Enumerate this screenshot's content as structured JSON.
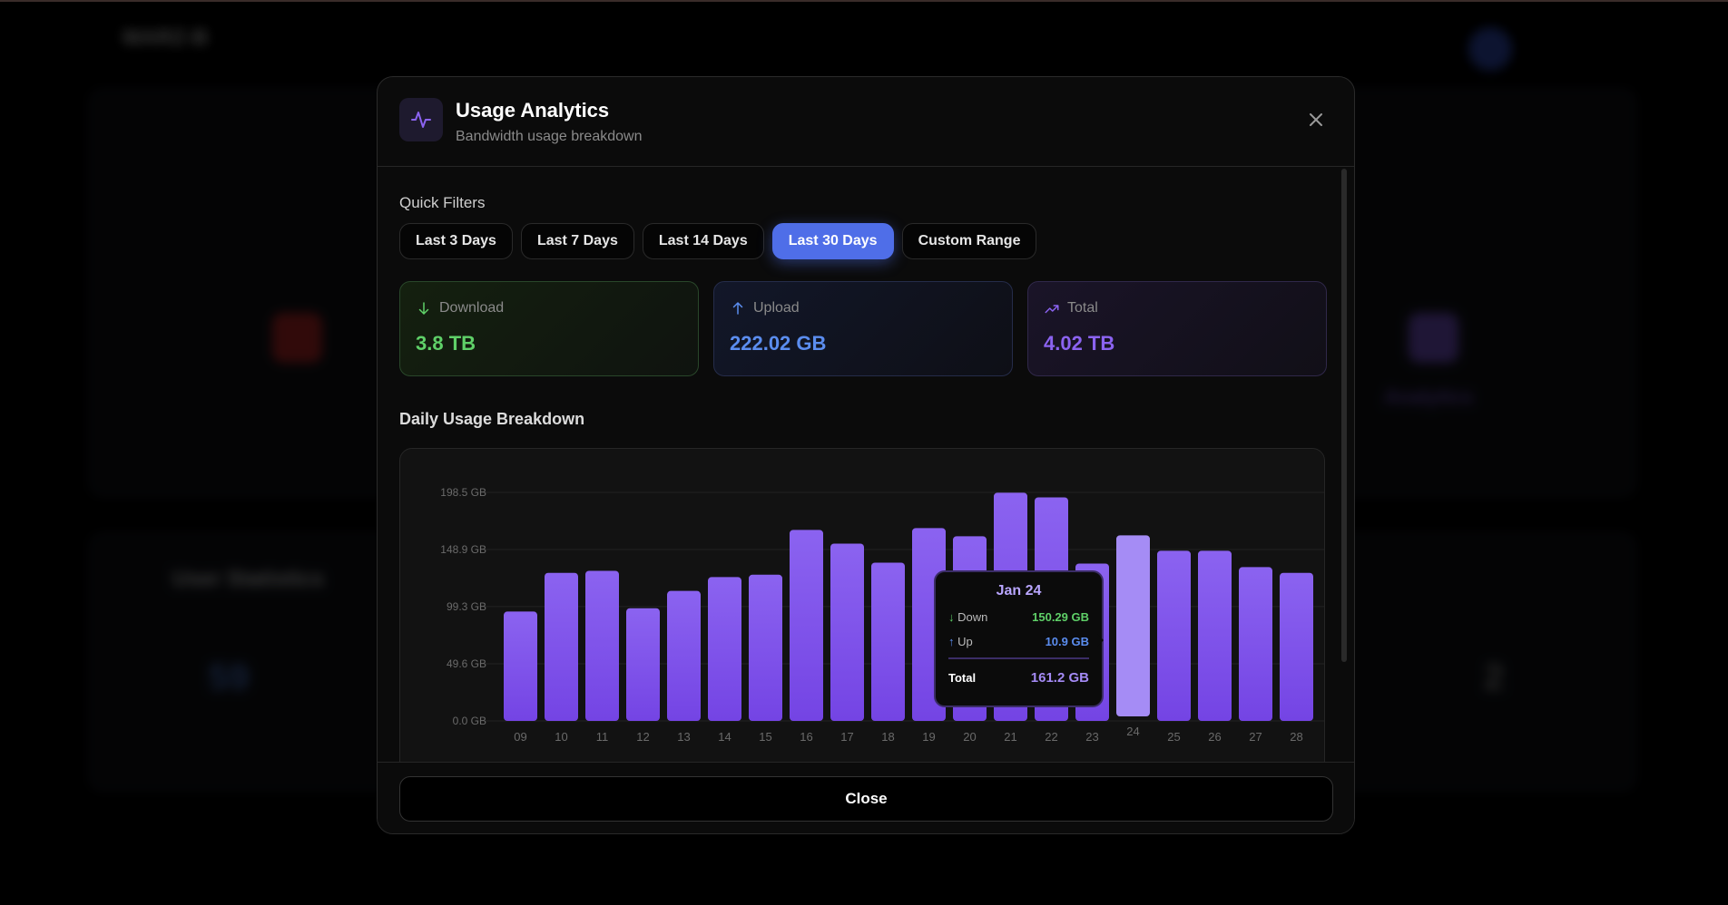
{
  "background": {
    "brand": "MARZ-B",
    "section_title": "User Statistics",
    "analytics_label": "Analytics",
    "users_count": "59",
    "other_count": "2"
  },
  "modal": {
    "title": "Usage Analytics",
    "subtitle": "Bandwidth usage breakdown",
    "quick_filters_label": "Quick Filters",
    "filters": [
      {
        "label": "Last 3 Days"
      },
      {
        "label": "Last 7 Days"
      },
      {
        "label": "Last 14 Days"
      },
      {
        "label": "Last 30 Days",
        "active": true
      },
      {
        "label": "Custom Range"
      }
    ],
    "stats": [
      {
        "label": "Download",
        "value": "3.8 TB",
        "color": "#5fd068",
        "icon": "arrow-down-icon"
      },
      {
        "label": "Upload",
        "value": "222.02 GB",
        "color": "#5b8def",
        "icon": "arrow-up-icon"
      },
      {
        "label": "Total",
        "value": "4.02 TB",
        "color": "#8b63f0",
        "icon": "trending-up-icon"
      }
    ],
    "chart_title": "Daily Usage Breakdown",
    "close_label": "Close"
  },
  "chart_data": {
    "type": "bar",
    "title": "Daily Usage Breakdown",
    "ylabel": "GB",
    "ylim": [
      0,
      198.5
    ],
    "yticks": [
      "0.0 GB",
      "49.6 GB",
      "99.3 GB",
      "148.9 GB",
      "198.5 GB"
    ],
    "ytick_values": [
      0,
      49.6,
      99.3,
      148.9,
      198.5
    ],
    "categories": [
      "09",
      "10",
      "11",
      "12",
      "13",
      "14",
      "15",
      "16",
      "17",
      "18",
      "19",
      "20",
      "21",
      "22",
      "23",
      "24",
      "25",
      "26",
      "27",
      "28"
    ],
    "values": [
      95,
      128.6,
      130.4,
      97.9,
      112.9,
      124.9,
      127,
      165.9,
      154,
      137.5,
      167.5,
      160.4,
      198.2,
      194.2,
      136.7,
      161.2,
      147.8,
      147.8,
      133.6,
      128.6
    ],
    "highlight_index": 15,
    "tooltip": {
      "date": "Jan 24",
      "down_label": "Down",
      "down": "150.29 GB",
      "up_label": "Up",
      "up": "10.9 GB",
      "total_label": "Total",
      "total": "161.2 GB"
    }
  }
}
